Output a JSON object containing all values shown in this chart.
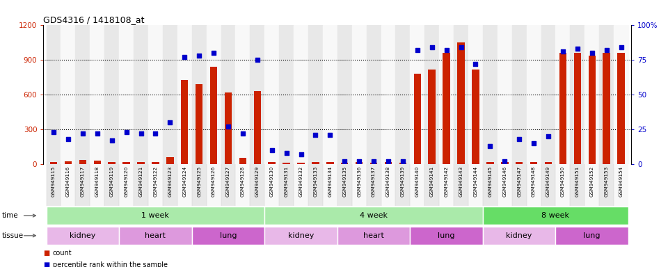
{
  "title": "GDS4316 / 1418108_at",
  "samples": [
    "GSM949115",
    "GSM949116",
    "GSM949117",
    "GSM949118",
    "GSM949119",
    "GSM949120",
    "GSM949121",
    "GSM949122",
    "GSM949123",
    "GSM949124",
    "GSM949125",
    "GSM949126",
    "GSM949127",
    "GSM949128",
    "GSM949129",
    "GSM949130",
    "GSM949131",
    "GSM949132",
    "GSM949133",
    "GSM949134",
    "GSM949135",
    "GSM949136",
    "GSM949137",
    "GSM949138",
    "GSM949139",
    "GSM949140",
    "GSM949141",
    "GSM949142",
    "GSM949143",
    "GSM949144",
    "GSM949145",
    "GSM949146",
    "GSM949147",
    "GSM949148",
    "GSM949149",
    "GSM949150",
    "GSM949151",
    "GSM949152",
    "GSM949153",
    "GSM949154"
  ],
  "counts": [
    20,
    25,
    40,
    30,
    20,
    20,
    20,
    20,
    60,
    730,
    690,
    840,
    620,
    55,
    630,
    20,
    15,
    15,
    20,
    20,
    15,
    20,
    15,
    20,
    15,
    780,
    820,
    960,
    1050,
    820,
    20,
    20,
    20,
    20,
    20,
    960,
    960,
    940,
    960,
    960
  ],
  "percentiles": [
    23,
    18,
    22,
    22,
    17,
    23,
    22,
    22,
    30,
    77,
    78,
    80,
    27,
    22,
    75,
    10,
    8,
    7,
    21,
    21,
    2,
    2,
    2,
    2,
    2,
    82,
    84,
    82,
    84,
    72,
    13,
    2,
    18,
    15,
    20,
    81,
    83,
    80,
    82,
    84
  ],
  "ylim_left": [
    0,
    1200
  ],
  "ylim_right": [
    0,
    100
  ],
  "yticks_left": [
    0,
    300,
    600,
    900,
    1200
  ],
  "yticks_right": [
    0,
    25,
    50,
    75,
    100
  ],
  "grid_lines": [
    300,
    600,
    900
  ],
  "bar_color": "#cc2200",
  "dot_color": "#0000cc",
  "col_bg_even": "#e8e8e8",
  "col_bg_odd": "#f8f8f8",
  "time_groups": [
    {
      "label": "1 week",
      "start": 0,
      "end": 15,
      "color": "#aaeaaa"
    },
    {
      "label": "4 week",
      "start": 15,
      "end": 30,
      "color": "#aaeaaa"
    },
    {
      "label": "8 week",
      "start": 30,
      "end": 40,
      "color": "#66dd66"
    }
  ],
  "tissue_groups": [
    {
      "label": "kidney",
      "start": 0,
      "end": 5,
      "color": "#e8b8e8"
    },
    {
      "label": "heart",
      "start": 5,
      "end": 10,
      "color": "#dd99dd"
    },
    {
      "label": "lung",
      "start": 10,
      "end": 15,
      "color": "#cc66cc"
    },
    {
      "label": "kidney",
      "start": 15,
      "end": 20,
      "color": "#e8b8e8"
    },
    {
      "label": "heart",
      "start": 20,
      "end": 25,
      "color": "#dd99dd"
    },
    {
      "label": "lung",
      "start": 25,
      "end": 30,
      "color": "#cc66cc"
    },
    {
      "label": "kidney",
      "start": 30,
      "end": 35,
      "color": "#e8b8e8"
    },
    {
      "label": "lung",
      "start": 35,
      "end": 40,
      "color": "#cc66cc"
    }
  ],
  "legend_count_label": "count",
  "legend_pct_label": "percentile rank within the sample"
}
